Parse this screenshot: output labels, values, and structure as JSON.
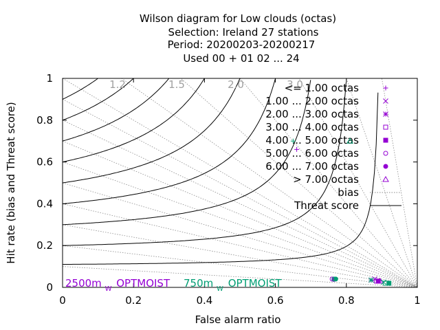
{
  "chart_data": {
    "type": "scatter",
    "title_lines": [
      "Wilson diagram  for Low clouds (octas)",
      "Selection: Ireland      27 stations",
      "Period: 20200203-20200217",
      "Used  00 + 01 02 ... 24"
    ],
    "xlabel": "False alarm ratio",
    "ylabel": "Hit rate (bias and Threat score)",
    "xlim": [
      0,
      1
    ],
    "ylim": [
      0,
      1
    ],
    "xticks": [
      "0",
      "0.2",
      "0.4",
      "0.6",
      "0.8",
      "1"
    ],
    "yticks": [
      "0",
      "0.2",
      "0.4",
      "0.6",
      "0.8",
      "1"
    ],
    "xtick_values": [
      0,
      0.2,
      0.4,
      0.6,
      0.8,
      1
    ],
    "ytick_values": [
      0,
      0.2,
      0.4,
      0.6,
      0.8,
      1
    ],
    "bias_values": [
      1.2,
      1.5,
      2.0,
      3.0
    ],
    "bias_labels": [
      "1.2",
      "1.5",
      "2.0",
      "3.0"
    ],
    "threat_scores": [
      0.1,
      0.2,
      0.3,
      0.4,
      0.5,
      0.6,
      0.7,
      0.8,
      0.9
    ],
    "threat_curve_hits": [
      0.11,
      0.2,
      0.3,
      0.4,
      0.5,
      0.6,
      0.7,
      0.8,
      0.9
    ],
    "legend": {
      "position": "top-right",
      "entries": [
        {
          "label": "<= 1.00 octas",
          "marker": "plus"
        },
        {
          "label": "1.00 ... 2.00 octas",
          "marker": "cross"
        },
        {
          "label": "2.00 ... 3.00 octas",
          "marker": "star"
        },
        {
          "label": "3.00 ... 4.00 octas",
          "marker": "square"
        },
        {
          "label": "4.00 ... 5.00 octas",
          "marker": "square-filled"
        },
        {
          "label": "5.00 ... 6.00 octas",
          "marker": "circle"
        },
        {
          "label": "6.00 ... 7.00 octas",
          "marker": "circle-filled"
        },
        {
          "label": "> 7.00 octas",
          "marker": "triangle"
        },
        {
          "label": "bias",
          "marker": "dotted-line"
        },
        {
          "label": "Threat score",
          "marker": "solid-line"
        }
      ]
    },
    "series": [
      {
        "name": "2500m OPTMOIST",
        "label_main": "2500m",
        "label_sub": "W",
        "label_tail": "OPTMOIST",
        "color": "#9400d3",
        "points": [
          {
            "class": "<= 1.00 octas",
            "x": 0.66,
            "y": 0.66
          },
          {
            "class": "1.00 ... 2.00 octas",
            "x": 0.88,
            "y": 0.04
          },
          {
            "class": "2.00 ... 3.00 octas",
            "x": 0.87,
            "y": 0.035
          },
          {
            "class": "3.00 ... 4.00 octas",
            "x": 0.885,
            "y": 0.03
          },
          {
            "class": "4.00 ... 5.00 octas",
            "x": 0.89,
            "y": 0.03
          },
          {
            "class": "5.00 ... 6.00 octas",
            "x": 0.76,
            "y": 0.04
          },
          {
            "class": "6.00 ... 7.00 octas",
            "x": 0.765,
            "y": 0.038
          },
          {
            "class": "> 7.00 octas",
            "x": 0.895,
            "y": 0.03
          }
        ]
      },
      {
        "name": "750m OPTMOIST",
        "label_main": "750m",
        "label_sub": "W",
        "label_tail": "OPTMOIST",
        "color": "#009e73",
        "points": [
          {
            "class": "<= 1.00 octas",
            "x": 0.65,
            "y": 0.7
          },
          {
            "class": "1.00 ... 2.00 octas",
            "x": 0.905,
            "y": 0.025
          },
          {
            "class": "2.00 ... 3.00 octas",
            "x": 0.87,
            "y": 0.035
          },
          {
            "class": "3.00 ... 4.00 octas",
            "x": 0.91,
            "y": 0.02
          },
          {
            "class": "4.00 ... 5.00 octas",
            "x": 0.92,
            "y": 0.02
          },
          {
            "class": "5.00 ... 6.00 octas",
            "x": 0.765,
            "y": 0.04
          },
          {
            "class": "6.00 ... 7.00 octas",
            "x": 0.77,
            "y": 0.04
          },
          {
            "class": "> 7.00 octas",
            "x": 0.81,
            "y": 0.7
          }
        ]
      }
    ]
  }
}
